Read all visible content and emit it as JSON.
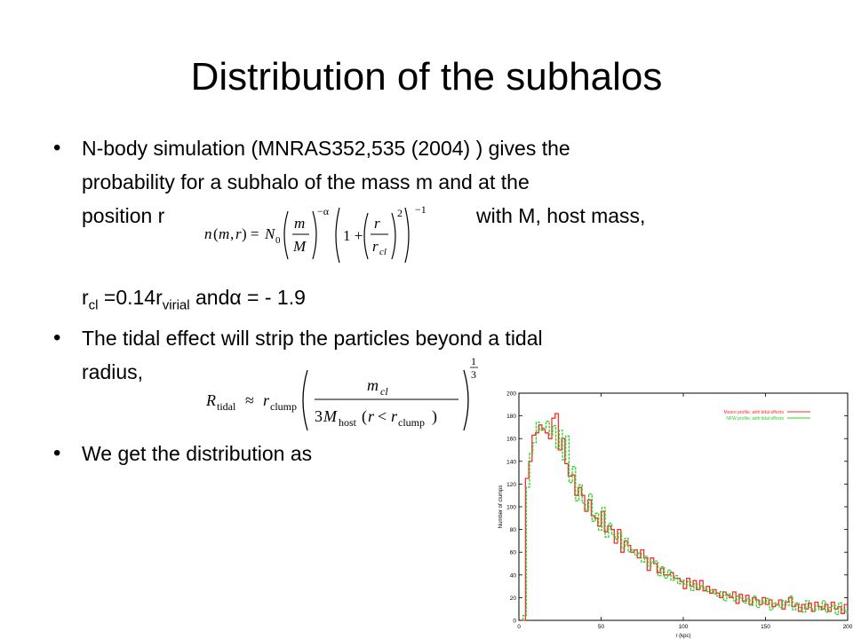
{
  "slide": {
    "title": "Distribution of the subhalos",
    "bullet1": {
      "line1": "N-body simulation  (MNRAS352,535 (2004) ) gives the",
      "line2": "probability for a subhalo of the mass m and at the",
      "line3a": "position r",
      "line3b": "with M, host mass,"
    },
    "param_line": {
      "r": "r",
      "cl": "cl",
      "mid": " =0.14r",
      "virial": "virial",
      "end": " andα =  - 1.9"
    },
    "bullet2": {
      "line1": "The tidal effect will strip the particles beyond a tidal",
      "line2": "radius,"
    },
    "bullet3": "We get the distribution as"
  },
  "formulas": {
    "n_of_m_r": "n(m,r) = N0 (m/M)^(-α) (1 + (r/r_cl)^2)^(-1)",
    "r_tidal": "R_tidal ≈ r_clump ( m_cl / (3 M_host (r < r_clump)) )^(1/3)"
  },
  "chart_data": {
    "type": "line",
    "xlabel": "r (kpc)",
    "ylabel": "Number of clumps",
    "xlim": [
      0,
      200
    ],
    "ylim": [
      0,
      200
    ],
    "xticks": [
      0,
      50,
      100,
      150,
      200
    ],
    "yticks": [
      0,
      20,
      40,
      60,
      80,
      100,
      120,
      140,
      160,
      180,
      200
    ],
    "grid": false,
    "legend_position": "top-right",
    "series": [
      {
        "name": "Moore profile, with tidal effects",
        "color": "#ff2a2a",
        "x": [
          3,
          5,
          7,
          9,
          11,
          13,
          15,
          17,
          19,
          21,
          23,
          25,
          27,
          29,
          31,
          33,
          35,
          37,
          39,
          41,
          43,
          45,
          47,
          49,
          51,
          53,
          55,
          57,
          59,
          61,
          63,
          65,
          67,
          69,
          71,
          73,
          75,
          77,
          79,
          81,
          83,
          85,
          87,
          89,
          91,
          93,
          95,
          97,
          99,
          101,
          103,
          105,
          107,
          109,
          111,
          113,
          115,
          117,
          119,
          121,
          123,
          125,
          127,
          129,
          131,
          133,
          135,
          137,
          139,
          141,
          143,
          145,
          147,
          149,
          151,
          153,
          155,
          157,
          159,
          161,
          163,
          165,
          167,
          169,
          171,
          173,
          175,
          177,
          179,
          181,
          183,
          185,
          187,
          189,
          191,
          193,
          195,
          197,
          199
        ],
        "values": [
          0,
          125,
          140,
          163,
          165,
          172,
          168,
          165,
          160,
          178,
          182,
          150,
          160,
          138,
          127,
          128,
          110,
          117,
          110,
          96,
          106,
          92,
          90,
          83,
          96,
          78,
          83,
          80,
          68,
          80,
          60,
          70,
          66,
          60,
          62,
          55,
          62,
          55,
          44,
          55,
          50,
          42,
          46,
          40,
          40,
          42,
          37,
          37,
          34,
          28,
          37,
          30,
          35,
          27,
          35,
          26,
          30,
          24,
          27,
          24,
          20,
          25,
          22,
          20,
          25,
          15,
          23,
          17,
          22,
          14,
          20,
          18,
          14,
          20,
          14,
          18,
          12,
          14,
          18,
          10,
          16,
          20,
          12,
          14,
          8,
          14,
          10,
          15,
          8,
          16,
          12,
          10,
          14,
          8,
          16,
          10,
          12,
          6,
          14
        ]
      },
      {
        "name": "NFW profile, with tidal effects",
        "color": "#2ad12a",
        "x": [
          3,
          5,
          7,
          9,
          11,
          13,
          15,
          17,
          19,
          21,
          23,
          25,
          27,
          29,
          31,
          33,
          35,
          37,
          39,
          41,
          43,
          45,
          47,
          49,
          51,
          53,
          55,
          57,
          59,
          61,
          63,
          65,
          67,
          69,
          71,
          73,
          75,
          77,
          79,
          81,
          83,
          85,
          87,
          89,
          91,
          93,
          95,
          97,
          99,
          101,
          103,
          105,
          107,
          109,
          111,
          113,
          115,
          117,
          119,
          121,
          123,
          125,
          127,
          129,
          131,
          133,
          135,
          137,
          139,
          141,
          143,
          145,
          147,
          149,
          151,
          153,
          155,
          157,
          159,
          161,
          163,
          165,
          167,
          169,
          171,
          173,
          175,
          177,
          179,
          181,
          183,
          185,
          187,
          189,
          191,
          193,
          195,
          197,
          199
        ],
        "values": [
          5,
          118,
          148,
          157,
          175,
          168,
          170,
          176,
          164,
          172,
          152,
          168,
          142,
          163,
          122,
          136,
          106,
          120,
          104,
          98,
          112,
          88,
          95,
          80,
          100,
          74,
          86,
          76,
          72,
          78,
          64,
          73,
          61,
          63,
          58,
          60,
          52,
          57,
          48,
          52,
          53,
          40,
          48,
          38,
          45,
          36,
          40,
          33,
          36,
          32,
          35,
          27,
          33,
          29,
          31,
          28,
          26,
          28,
          24,
          22,
          26,
          18,
          24,
          22,
          18,
          22,
          20,
          16,
          20,
          14,
          22,
          12,
          18,
          16,
          20,
          10,
          16,
          14,
          12,
          18,
          14,
          22,
          10,
          16,
          12,
          8,
          18,
          12,
          10,
          14,
          10,
          18,
          8,
          12,
          14,
          6,
          16,
          10,
          8
        ]
      }
    ]
  }
}
